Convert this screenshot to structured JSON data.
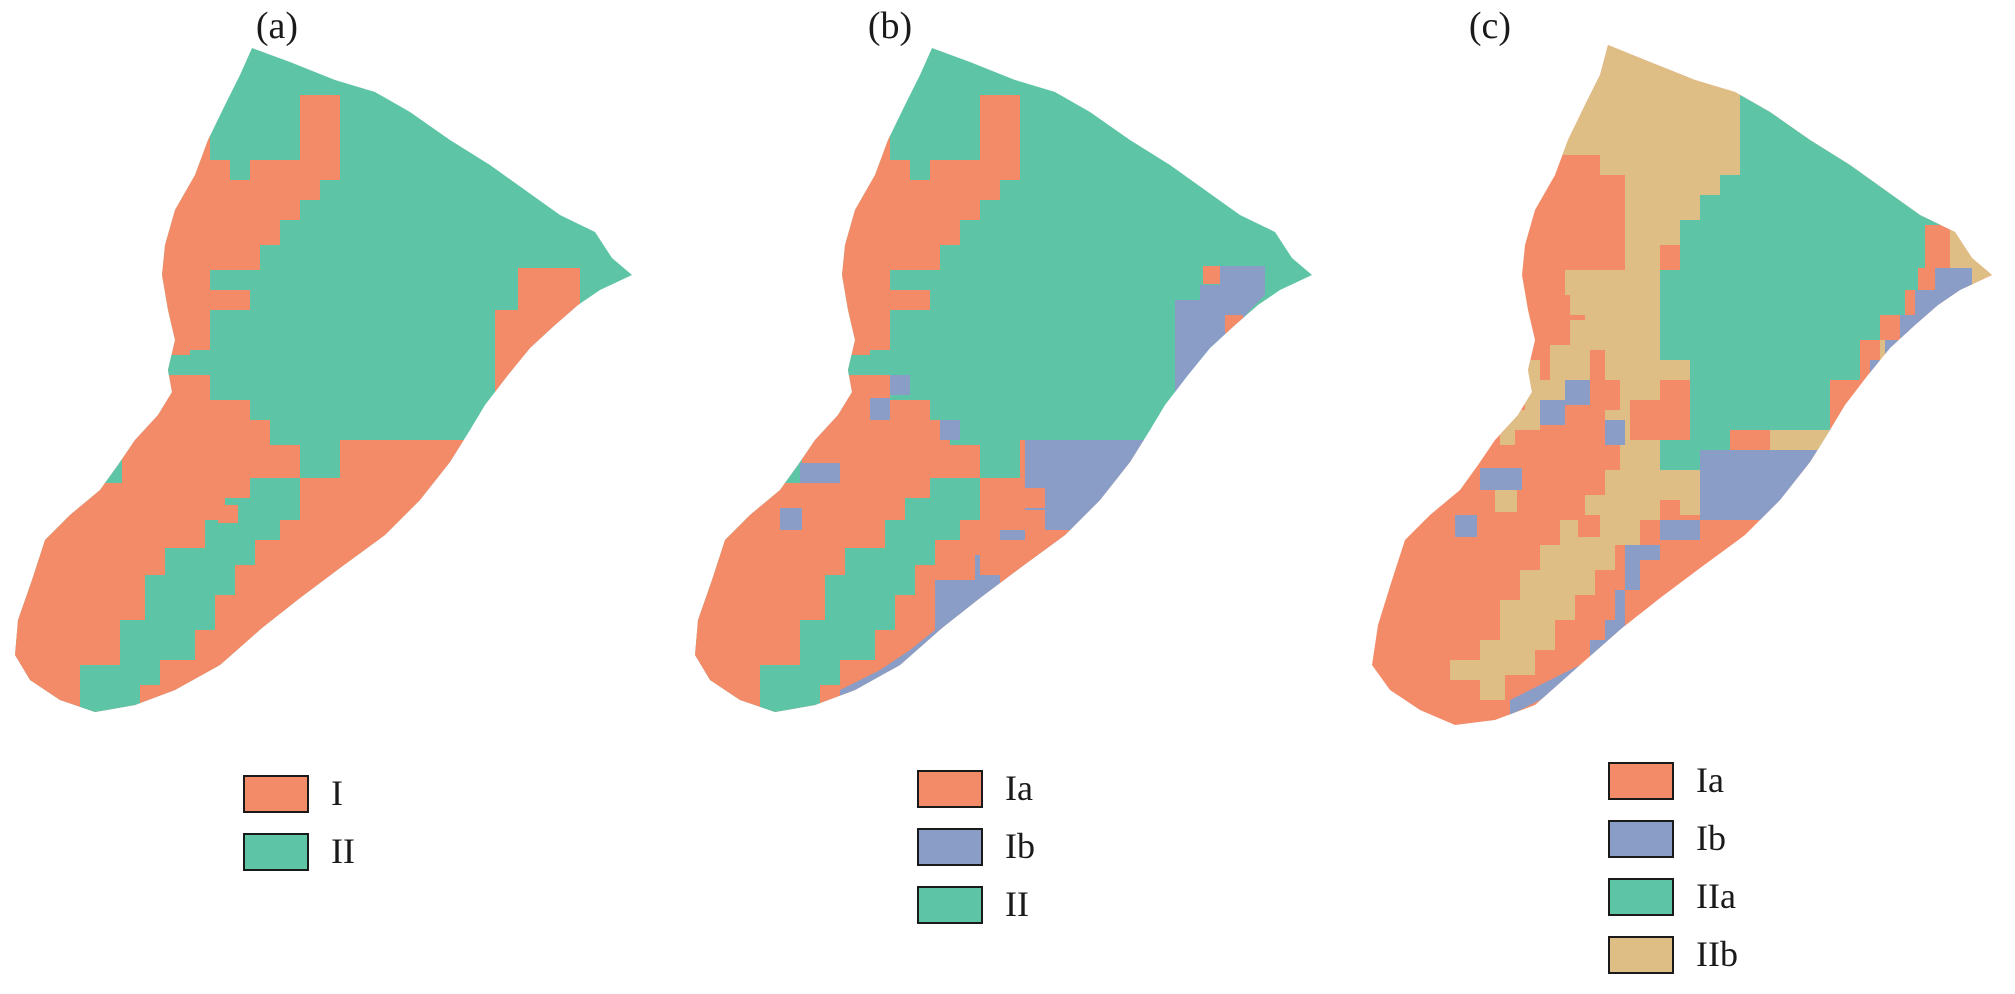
{
  "colors": {
    "I": "#f38b69",
    "Ia": "#f38b69",
    "Ib": "#8a9dc7",
    "II": "#5ec4a6",
    "IIa": "#5ec4a6",
    "IIb": "#dfbe86"
  },
  "panels": {
    "a": {
      "label": "(a)",
      "legend": [
        {
          "key": "I",
          "label": "I"
        },
        {
          "key": "II",
          "label": "II"
        }
      ]
    },
    "b": {
      "label": "(b)",
      "legend": [
        {
          "key": "Ia",
          "label": "Ia"
        },
        {
          "key": "Ib",
          "label": "Ib"
        },
        {
          "key": "II",
          "label": "II"
        }
      ]
    },
    "c": {
      "label": "(c)",
      "legend": [
        {
          "key": "Ia",
          "label": "Ia"
        },
        {
          "key": "Ib",
          "label": "Ib"
        },
        {
          "key": "IIa",
          "label": "IIa"
        },
        {
          "key": "IIb",
          "label": "IIb"
        }
      ]
    }
  }
}
